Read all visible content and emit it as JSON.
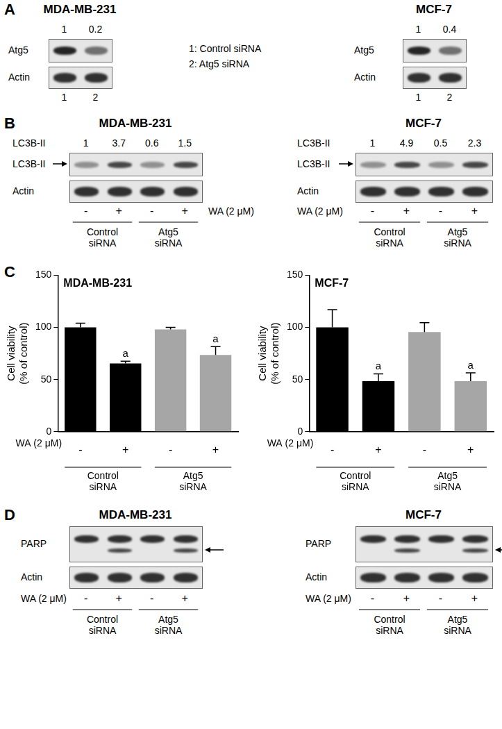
{
  "panels": {
    "A": {
      "label": "A",
      "key": [
        "1: Control siRNA",
        "2: Atg5 siRNA"
      ],
      "blots": [
        {
          "title": "MDA-MB-231",
          "quantification": [
            1,
            0.2
          ],
          "rows": [
            "Atg5",
            "Actin"
          ],
          "lanes": [
            1,
            2
          ]
        },
        {
          "title": "MCF-7",
          "quantification": [
            1,
            0.4
          ],
          "rows": [
            "Atg5",
            "Actin"
          ],
          "lanes": [
            1,
            2
          ]
        }
      ]
    },
    "B": {
      "label": "B",
      "blots": [
        {
          "title": "MDA-MB-231",
          "quantification_label": "LC3B-II",
          "quantification": [
            1,
            3.7,
            0.6,
            1.5
          ],
          "rows": [
            "LC3B-II",
            "Actin"
          ],
          "treatment_label": "WA (2 μM)",
          "treatment": [
            "-",
            "+",
            "-",
            "+"
          ],
          "groups": [
            "Control siRNA",
            "Atg5 siRNA"
          ]
        },
        {
          "title": "MCF-7",
          "quantification_label": "LC3B-II",
          "quantification": [
            1,
            4.9,
            0.5,
            2.3
          ],
          "rows": [
            "LC3B-II",
            "Actin"
          ],
          "treatment_label": "WA (2 μM)",
          "treatment": [
            "-",
            "+",
            "-",
            "+"
          ],
          "groups": [
            "Control siRNA",
            "Atg5 siRNA"
          ]
        }
      ]
    },
    "C": {
      "label": "C"
    },
    "D": {
      "label": "D",
      "blots": [
        {
          "title": "MDA-MB-231",
          "rows": [
            "PARP",
            "Actin"
          ],
          "treatment_label": "WA (2 μM)",
          "treatment": [
            "-",
            "+",
            "-",
            "+"
          ],
          "groups": [
            "Control siRNA",
            "Atg5 siRNA"
          ]
        },
        {
          "title": "MCF-7",
          "rows": [
            "PARP",
            "Actin"
          ],
          "treatment_label": "WA (2 μM)",
          "treatment": [
            "-",
            "+",
            "-",
            "+"
          ],
          "groups": [
            "Control siRNA",
            "Atg5 siRNA"
          ]
        }
      ]
    }
  },
  "chart_data": [
    {
      "type": "bar",
      "title": "MDA-MB-231",
      "y_label": [
        "Cell viability",
        "(% of control)"
      ],
      "x_label": "WA (2 μM)",
      "categories": [
        "-",
        "+",
        "-",
        "+"
      ],
      "groups": [
        "Control siRNA",
        "Atg5 siRNA"
      ],
      "values": [
        100,
        65.5,
        98,
        73.5
      ],
      "errors": [
        4,
        2,
        2,
        8
      ],
      "annotations": [
        null,
        "a",
        null,
        "a"
      ],
      "colors": [
        "#000000",
        "#000000",
        "#a6a6a6",
        "#a6a6a6"
      ],
      "ylim": [
        0,
        150
      ],
      "yticks": [
        0,
        50,
        100,
        150
      ],
      "grid": false
    },
    {
      "type": "bar",
      "title": "MCF-7",
      "y_label": [
        "Cell viability",
        "(% of control)"
      ],
      "x_label": "WA (2 μM)",
      "categories": [
        "-",
        "+",
        "-",
        "+"
      ],
      "groups": [
        "Control siRNA",
        "Atg5 siRNA"
      ],
      "values": [
        100,
        48.5,
        95.5,
        48.5
      ],
      "errors": [
        17,
        7,
        9,
        8
      ],
      "annotations": [
        null,
        "a",
        null,
        "a"
      ],
      "colors": [
        "#000000",
        "#000000",
        "#a6a6a6",
        "#a6a6a6"
      ],
      "ylim": [
        0,
        150
      ],
      "yticks": [
        0,
        50,
        100,
        150
      ],
      "grid": false
    }
  ]
}
